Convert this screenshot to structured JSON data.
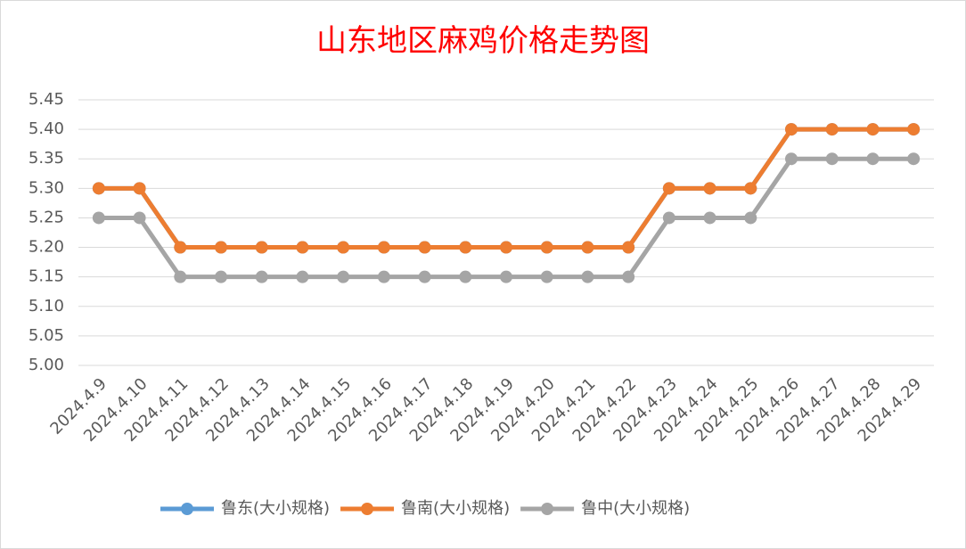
{
  "chart_data": {
    "type": "line",
    "title": "山东地区麻鸡价格走势图",
    "categories": [
      "2024.4.9",
      "2024.4.10",
      "2024.4.11",
      "2024.4.12",
      "2024.4.13",
      "2024.4.14",
      "2024.4.15",
      "2024.4.16",
      "2024.4.17",
      "2024.4.18",
      "2024.4.19",
      "2024.4.20",
      "2024.4.21",
      "2024.4.22",
      "2024.4.23",
      "2024.4.24",
      "2024.4.25",
      "2024.4.26",
      "2024.4.27",
      "2024.4.28",
      "2024.4.29"
    ],
    "series": [
      {
        "name": "鲁东(大小规格)",
        "color": "#5b9bd5",
        "values": [
          5.3,
          5.3,
          5.2,
          5.2,
          5.2,
          5.2,
          5.2,
          5.2,
          5.2,
          5.2,
          5.2,
          5.2,
          5.2,
          5.2,
          5.3,
          5.3,
          5.3,
          5.4,
          5.4,
          5.4,
          5.4
        ]
      },
      {
        "name": "鲁南(大小规格)",
        "color": "#ed7d31",
        "values": [
          5.3,
          5.3,
          5.2,
          5.2,
          5.2,
          5.2,
          5.2,
          5.2,
          5.2,
          5.2,
          5.2,
          5.2,
          5.2,
          5.2,
          5.3,
          5.3,
          5.3,
          5.4,
          5.4,
          5.4,
          5.4
        ]
      },
      {
        "name": "鲁中(大小规格)",
        "color": "#a5a5a5",
        "values": [
          5.25,
          5.25,
          5.15,
          5.15,
          5.15,
          5.15,
          5.15,
          5.15,
          5.15,
          5.15,
          5.15,
          5.15,
          5.15,
          5.15,
          5.25,
          5.25,
          5.25,
          5.35,
          5.35,
          5.35,
          5.35
        ]
      }
    ],
    "ylim": [
      5.0,
      5.45
    ],
    "yticks": [
      {
        "value": 5.0,
        "label": "5.00"
      },
      {
        "value": 5.05,
        "label": "5.05"
      },
      {
        "value": 5.1,
        "label": "5.10"
      },
      {
        "value": 5.15,
        "label": "5.15"
      },
      {
        "value": 5.2,
        "label": "5.20"
      },
      {
        "value": 5.25,
        "label": "5.25"
      },
      {
        "value": 5.3,
        "label": "5.30"
      },
      {
        "value": 5.35,
        "label": "5.35"
      },
      {
        "value": 5.4,
        "label": "5.40"
      },
      {
        "value": 5.45,
        "label": "5.45"
      }
    ],
    "grid": true,
    "legend": "bottom"
  }
}
